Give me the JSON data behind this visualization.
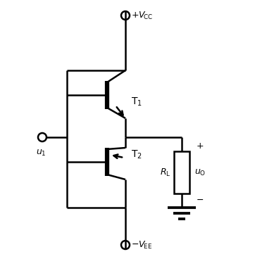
{
  "bg_color": "#ffffff",
  "line_color": "#000000",
  "lw": 1.8,
  "fig_width": 3.62,
  "fig_height": 3.95,
  "dpi": 100
}
